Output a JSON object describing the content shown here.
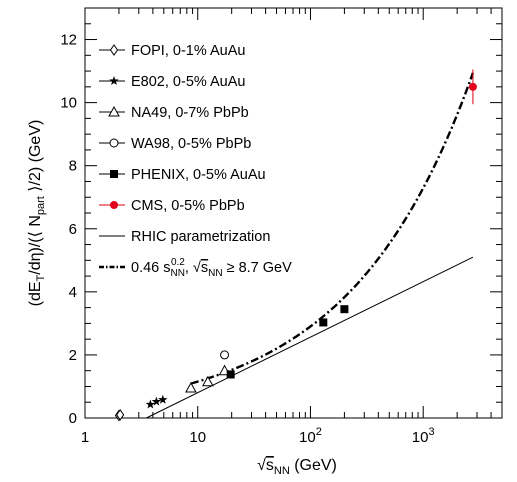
{
  "chart_data": {
    "type": "scatter",
    "x_scale": "log",
    "xlim": [
      1,
      5000
    ],
    "ylim": [
      0,
      13
    ],
    "x_ticks": [
      {
        "v": 1,
        "label": "1"
      },
      {
        "v": 10,
        "label": "10"
      },
      {
        "v": 100,
        "label": "10",
        "sup": "2"
      },
      {
        "v": 1000,
        "label": "10",
        "sup": "3"
      }
    ],
    "y_ticks": [
      0,
      2,
      4,
      6,
      8,
      10,
      12
    ],
    "xlabel": {
      "pre": "√",
      "main": "s",
      "sub": "NN",
      "post": " (GeV)"
    },
    "ylabel": {
      "p1": "(dE",
      "p1sub": "T",
      "p2": "/dη)/(⟨ N",
      "p2sub": "part",
      "p3": " ⟩/2) (GeV)"
    },
    "series": [
      {
        "name": "FOPI, 0-1% AuAu",
        "marker": "diamond-open",
        "color": "#000000",
        "points": [
          [
            2.0,
            0.08
          ],
          [
            2.05,
            0.1
          ]
        ]
      },
      {
        "name": "E802, 0-5% AuAu",
        "marker": "star",
        "color": "#000000",
        "points": [
          [
            3.8,
            0.43
          ],
          [
            4.3,
            0.52
          ],
          [
            4.9,
            0.58
          ]
        ]
      },
      {
        "name": "NA49, 0-7% PbPb",
        "marker": "triangle-open",
        "color": "#000000",
        "points": [
          [
            8.7,
            0.95
          ],
          [
            12.3,
            1.15
          ],
          [
            17.3,
            1.5
          ]
        ]
      },
      {
        "name": "WA98, 0-5% PbPb",
        "marker": "circle-open",
        "color": "#000000",
        "points": [
          [
            17.3,
            2.0
          ]
        ]
      },
      {
        "name": "PHENIX, 0-5% AuAu",
        "marker": "square",
        "color": "#000000",
        "points": [
          [
            19.6,
            1.38
          ],
          [
            130,
            3.03
          ],
          [
            200,
            3.45
          ]
        ]
      },
      {
        "name": "CMS, 0-5% PbPb",
        "marker": "circle",
        "color": "#e3001b",
        "points": [
          [
            2760,
            10.5
          ]
        ],
        "yerr": [
          [
            9.95,
            11.05
          ]
        ]
      }
    ],
    "lines": [
      {
        "name": "RHIC parametrization",
        "style": "solid",
        "points": [
          [
            3.5,
            0.0
          ],
          [
            2760,
            5.1
          ]
        ]
      },
      {
        "name": "0.46 s_NN^0.2, √s_NN ≥ 8.7 GeV",
        "style": "dashdot",
        "func": "0.46*s^0.2",
        "xrange": [
          8.7,
          2760
        ]
      }
    ],
    "legend": {
      "placement": "top-left",
      "entries": [
        {
          "label": "FOPI, 0-1% AuAu",
          "marker": "diamond-open"
        },
        {
          "label": "E802, 0-5% AuAu",
          "marker": "star"
        },
        {
          "label": "NA49, 0-7% PbPb",
          "marker": "triangle-open"
        },
        {
          "label": "WA98, 0-5% PbPb",
          "marker": "circle-open"
        },
        {
          "label": "PHENIX, 0-5% AuAu",
          "marker": "square"
        },
        {
          "label": "CMS, 0-5% PbPb",
          "marker": "circle",
          "color": "#e3001b"
        },
        {
          "label": "RHIC parametrization",
          "marker": "line"
        },
        {
          "label_parts": [
            "0.46 s",
            "NN",
            "0.2",
            ",  √",
            "s",
            "NN",
            " ≥ 8.7 GeV"
          ],
          "marker": "dashdot"
        }
      ]
    }
  }
}
